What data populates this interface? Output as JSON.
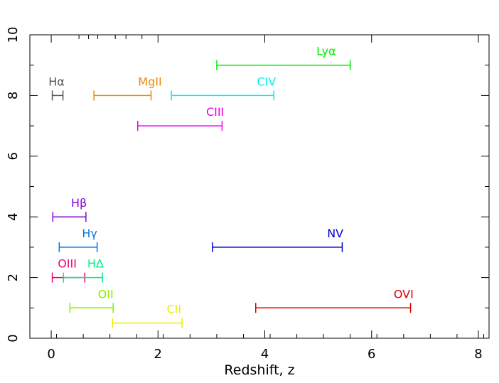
{
  "chart_data": {
    "type": "range",
    "title": "",
    "xlabel": "Redshift, z",
    "ylabel": "",
    "xlim": [
      -0.4,
      8.2
    ],
    "ylim": [
      0,
      10
    ],
    "x_ticks": [
      0,
      2,
      4,
      6,
      8
    ],
    "x_tick_labels": [
      "0",
      "2",
      "4",
      "6",
      "8"
    ],
    "y_ticks": [
      0,
      2,
      4,
      6,
      8,
      10
    ],
    "y_tick_labels": [
      "0",
      "2",
      "4",
      "6",
      "8",
      "10"
    ],
    "grid": false,
    "series": [
      {
        "name": "Lyα",
        "display": "Lyα",
        "color": "#00ee00",
        "y": 9.0,
        "x_start": 3.1,
        "x_end": 5.6,
        "label_x": 5.15
      },
      {
        "name": "Hα",
        "display": "Hα",
        "color": "#555555",
        "y": 8.0,
        "x_start": 0.02,
        "x_end": 0.22,
        "label_x": 0.1
      },
      {
        "name": "MgII",
        "display": "MgII",
        "color": "#ee8800",
        "y": 8.0,
        "x_start": 0.8,
        "x_end": 1.87,
        "label_x": 1.85
      },
      {
        "name": "CIV",
        "display": "CIV",
        "color": "#00eeee",
        "y": 8.0,
        "x_start": 2.25,
        "x_end": 4.17,
        "label_x": 4.03
      },
      {
        "name": "CIII",
        "display": "CIII",
        "color": "#ee00ee",
        "y": 7.0,
        "x_start": 1.62,
        "x_end": 3.2,
        "label_x": 3.07
      },
      {
        "name": "Hβ",
        "display": "Hβ",
        "color": "#8800dd",
        "y": 4.0,
        "x_start": 0.03,
        "x_end": 0.65,
        "label_x": 0.52
      },
      {
        "name": "Hγ",
        "display": "Hγ",
        "color": "#0077ee",
        "y": 3.0,
        "x_start": 0.15,
        "x_end": 0.86,
        "label_x": 0.72
      },
      {
        "name": "NV",
        "display": "NV",
        "color": "#0000cc",
        "y": 3.0,
        "x_start": 3.02,
        "x_end": 5.45,
        "label_x": 5.32
      },
      {
        "name": "OIII",
        "display": "OIII",
        "color": "#ee0077",
        "y": 2.0,
        "x_start": 0.02,
        "x_end": 0.63,
        "label_x": 0.3
      },
      {
        "name": "HΔ",
        "display": "HΔ",
        "color": "#00ee88",
        "y": 2.0,
        "x_start": 0.23,
        "x_end": 0.96,
        "label_x": 0.83
      },
      {
        "name": "OII",
        "display": "OII",
        "color": "#88ee00",
        "y": 1.0,
        "x_start": 0.35,
        "x_end": 1.16,
        "label_x": 1.02
      },
      {
        "name": "OVI",
        "display": "OVI",
        "color": "#dd0000",
        "y": 1.0,
        "x_start": 3.83,
        "x_end": 6.73,
        "label_x": 6.6
      },
      {
        "name": "CII",
        "display": "CII",
        "color": "#eeee00",
        "y": 0.5,
        "x_start": 1.15,
        "x_end": 2.45,
        "label_x": 2.3
      }
    ]
  }
}
